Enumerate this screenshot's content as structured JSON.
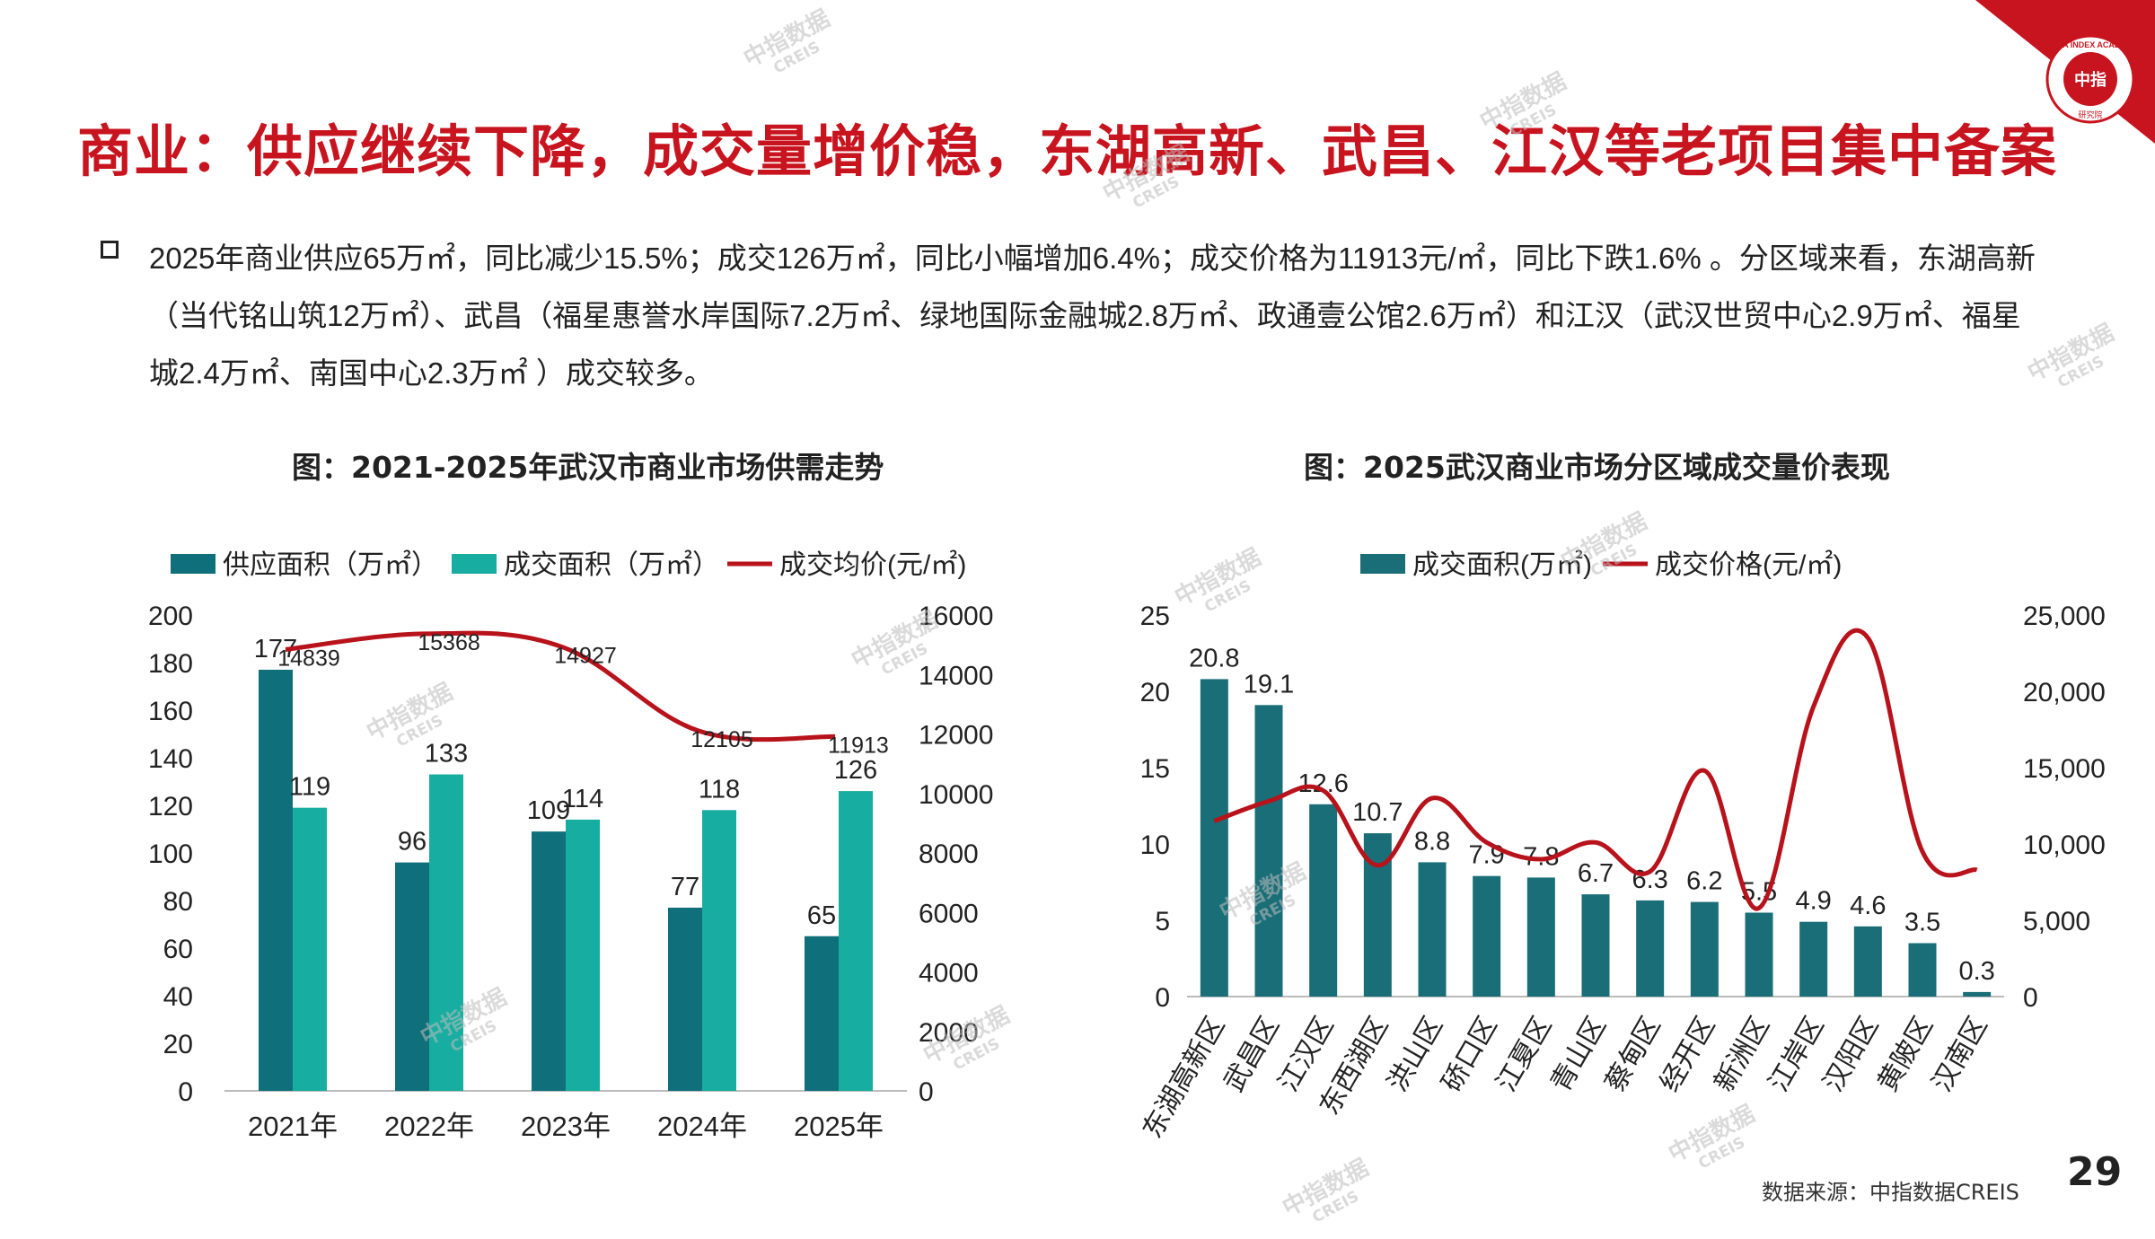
{
  "title": "商业：供应继续下降，成交量增价稳，东湖高新、武昌、江汉等老项目集中备案",
  "paragraph": "2025年商业供应65万㎡，同比减少15.5%；成交126万㎡，同比小幅增加6.4%；成交价格为11913元/㎡，同比下跌1.6% 。分区域来看，东湖高新（当代铭山筑12万㎡）、武昌（福星惠誉水岸国际7.2万㎡、绿地国际金融城2.8万㎡、政通壹公馆2.6万㎡）和江汉（武汉世贸中心2.9万㎡、福星城2.4万㎡、南国中心2.3万㎡ ）成交较多。",
  "logo": {
    "ring_text": "CHINA INDEX ACADEMY",
    "center": "中指",
    "bottom": "研究院"
  },
  "watermark": {
    "main": "中指数据",
    "sub": "CREIS"
  },
  "colors": {
    "brand_red": "#c8141e",
    "supply": "#0f6f7a",
    "deal": "#17ada0",
    "price_line": "#b8121b",
    "bar2": "#1a6e77"
  },
  "source": "数据来源：中指数据CREIS",
  "page_number": "29",
  "chart_data": [
    {
      "type": "bar",
      "title": "图：2021-2025年武汉市商业市场供需走势",
      "categories": [
        "2021年",
        "2022年",
        "2023年",
        "2024年",
        "2025年"
      ],
      "series": [
        {
          "name": "供应面积（万㎡）",
          "kind": "bar",
          "axis": "left",
          "values": [
            177,
            96,
            109,
            77,
            65
          ]
        },
        {
          "name": "成交面积（万㎡）",
          "kind": "bar",
          "axis": "left",
          "values": [
            119,
            133,
            114,
            118,
            126
          ]
        },
        {
          "name": "成交均价(元/㎡)",
          "kind": "line",
          "axis": "right",
          "values": [
            14839,
            15368,
            14927,
            12105,
            11913
          ]
        }
      ],
      "y_left": {
        "min": 0,
        "max": 200,
        "ticks": [
          "0",
          "20",
          "40",
          "60",
          "80",
          "100",
          "120",
          "140",
          "160",
          "180",
          "200"
        ]
      },
      "y_right": {
        "min": 0,
        "max": 16000,
        "ticks": [
          "0",
          "2000",
          "4000",
          "6000",
          "8000",
          "10000",
          "12000",
          "14000",
          "16000"
        ]
      },
      "legend": "top"
    },
    {
      "type": "bar",
      "title": "图：2025武汉商业市场分区域成交量价表现",
      "categories": [
        "东湖高新区",
        "武昌区",
        "江汉区",
        "东西湖区",
        "洪山区",
        "硚口区",
        "江夏区",
        "青山区",
        "蔡甸区",
        "经开区",
        "新洲区",
        "江岸区",
        "汉阳区",
        "黄陂区",
        "汉南区"
      ],
      "series": [
        {
          "name": "成交面积(万㎡)",
          "kind": "bar",
          "axis": "left",
          "values": [
            20.8,
            19.1,
            12.6,
            10.7,
            8.8,
            7.9,
            7.8,
            6.7,
            6.3,
            6.2,
            5.5,
            4.9,
            4.6,
            3.5,
            0.3
          ]
        },
        {
          "name": "成交价格(元/㎡)",
          "kind": "line",
          "axis": "right",
          "values": [
            11500,
            12800,
            13500,
            8600,
            13000,
            10100,
            9000,
            10100,
            8200,
            14800,
            5800,
            19000,
            23500,
            9500,
            8300
          ]
        }
      ],
      "y_left": {
        "min": 0,
        "max": 25,
        "ticks": [
          "0",
          "5",
          "10",
          "15",
          "20",
          "25"
        ]
      },
      "y_right": {
        "min": 0,
        "max": 25000,
        "ticks": [
          "0",
          "5,000",
          "10,000",
          "15,000",
          "20,000",
          "25,000"
        ]
      },
      "legend": "top"
    }
  ]
}
